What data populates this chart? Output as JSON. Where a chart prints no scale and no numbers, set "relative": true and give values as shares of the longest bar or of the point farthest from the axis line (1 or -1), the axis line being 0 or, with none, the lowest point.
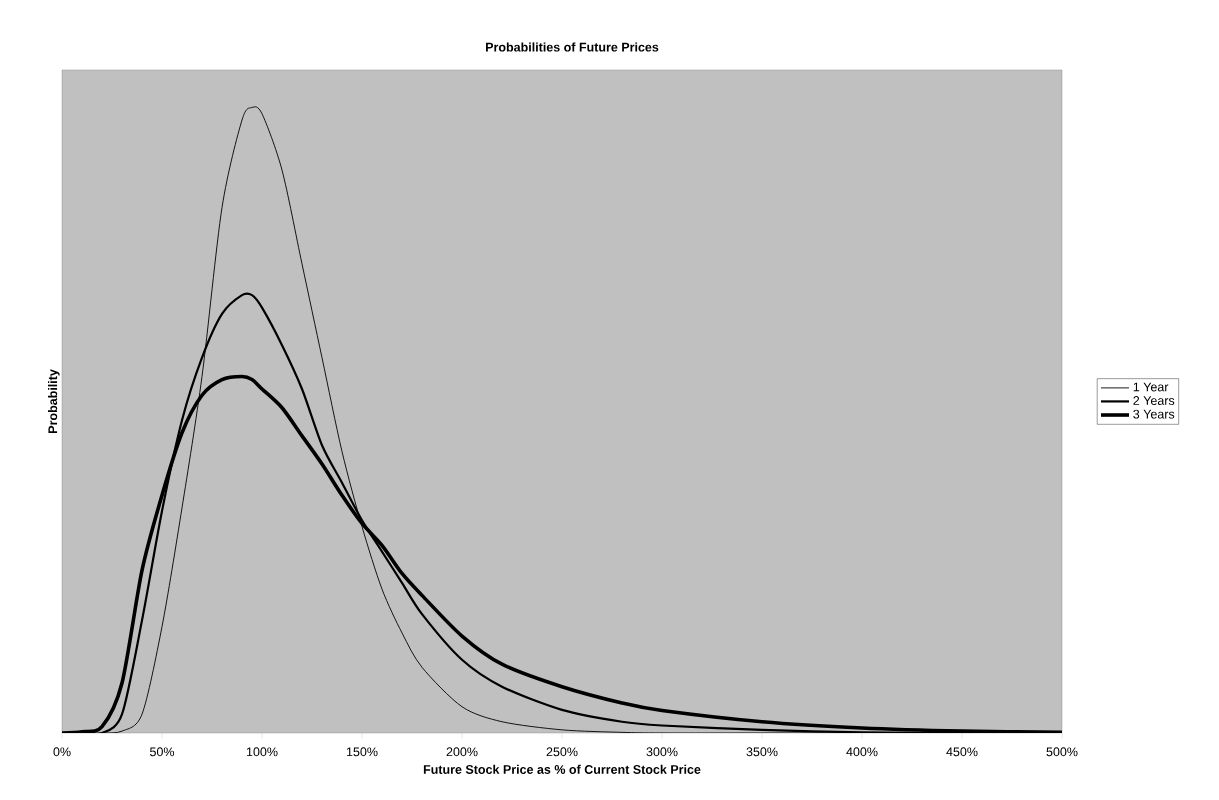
{
  "chart_data": {
    "type": "line",
    "title": "Probabilities of Future Prices",
    "xlabel": "Future Stock Price as % of Current Stock Price",
    "ylabel": "Probability",
    "relative": true,
    "x": [
      0,
      10,
      20,
      30,
      40,
      50,
      60,
      70,
      80,
      90,
      95,
      100,
      110,
      120,
      130,
      140,
      150,
      160,
      170,
      180,
      200,
      220,
      250,
      280,
      300,
      350,
      400,
      450,
      500
    ],
    "xlim": [
      0,
      500
    ],
    "xticks": [
      {
        "value": 0,
        "label": "0%"
      },
      {
        "value": 50,
        "label": "50%"
      },
      {
        "value": 100,
        "label": "100%"
      },
      {
        "value": 150,
        "label": "150%"
      },
      {
        "value": 200,
        "label": "200%"
      },
      {
        "value": 250,
        "label": "250%"
      },
      {
        "value": 300,
        "label": "300%"
      },
      {
        "value": 350,
        "label": "350%"
      },
      {
        "value": 400,
        "label": "400%"
      },
      {
        "value": 450,
        "label": "450%"
      },
      {
        "value": 500,
        "label": "500%"
      }
    ],
    "series": [
      {
        "name": "1 Year",
        "color": "#000000",
        "values": [
          0,
          0,
          0,
          0.003,
          0.03,
          0.17,
          0.36,
          0.57,
          0.84,
          0.98,
          1.0,
          0.99,
          0.9,
          0.75,
          0.6,
          0.45,
          0.33,
          0.23,
          0.16,
          0.105,
          0.042,
          0.018,
          0.005,
          0.001,
          0,
          0,
          0,
          0,
          0
        ]
      },
      {
        "name": "2 Years",
        "color": "#000000",
        "values": [
          0,
          0,
          0,
          0.03,
          0.18,
          0.355,
          0.5,
          0.6,
          0.67,
          0.7,
          0.7,
          0.68,
          0.62,
          0.55,
          0.46,
          0.4,
          0.34,
          0.29,
          0.24,
          0.19,
          0.117,
          0.074,
          0.037,
          0.018,
          0.012,
          0.005,
          0.001,
          0,
          0
        ]
      },
      {
        "name": "3 Years",
        "color": "#000000",
        "values": [
          0,
          0.002,
          0.01,
          0.08,
          0.26,
          0.38,
          0.48,
          0.54,
          0.565,
          0.57,
          0.565,
          0.55,
          0.52,
          0.475,
          0.43,
          0.38,
          0.335,
          0.3,
          0.255,
          0.22,
          0.155,
          0.11,
          0.074,
          0.048,
          0.036,
          0.018,
          0.008,
          0.003,
          0.001
        ]
      }
    ],
    "legend": "right",
    "grid": false,
    "marker": "none",
    "line_style": "solid"
  }
}
